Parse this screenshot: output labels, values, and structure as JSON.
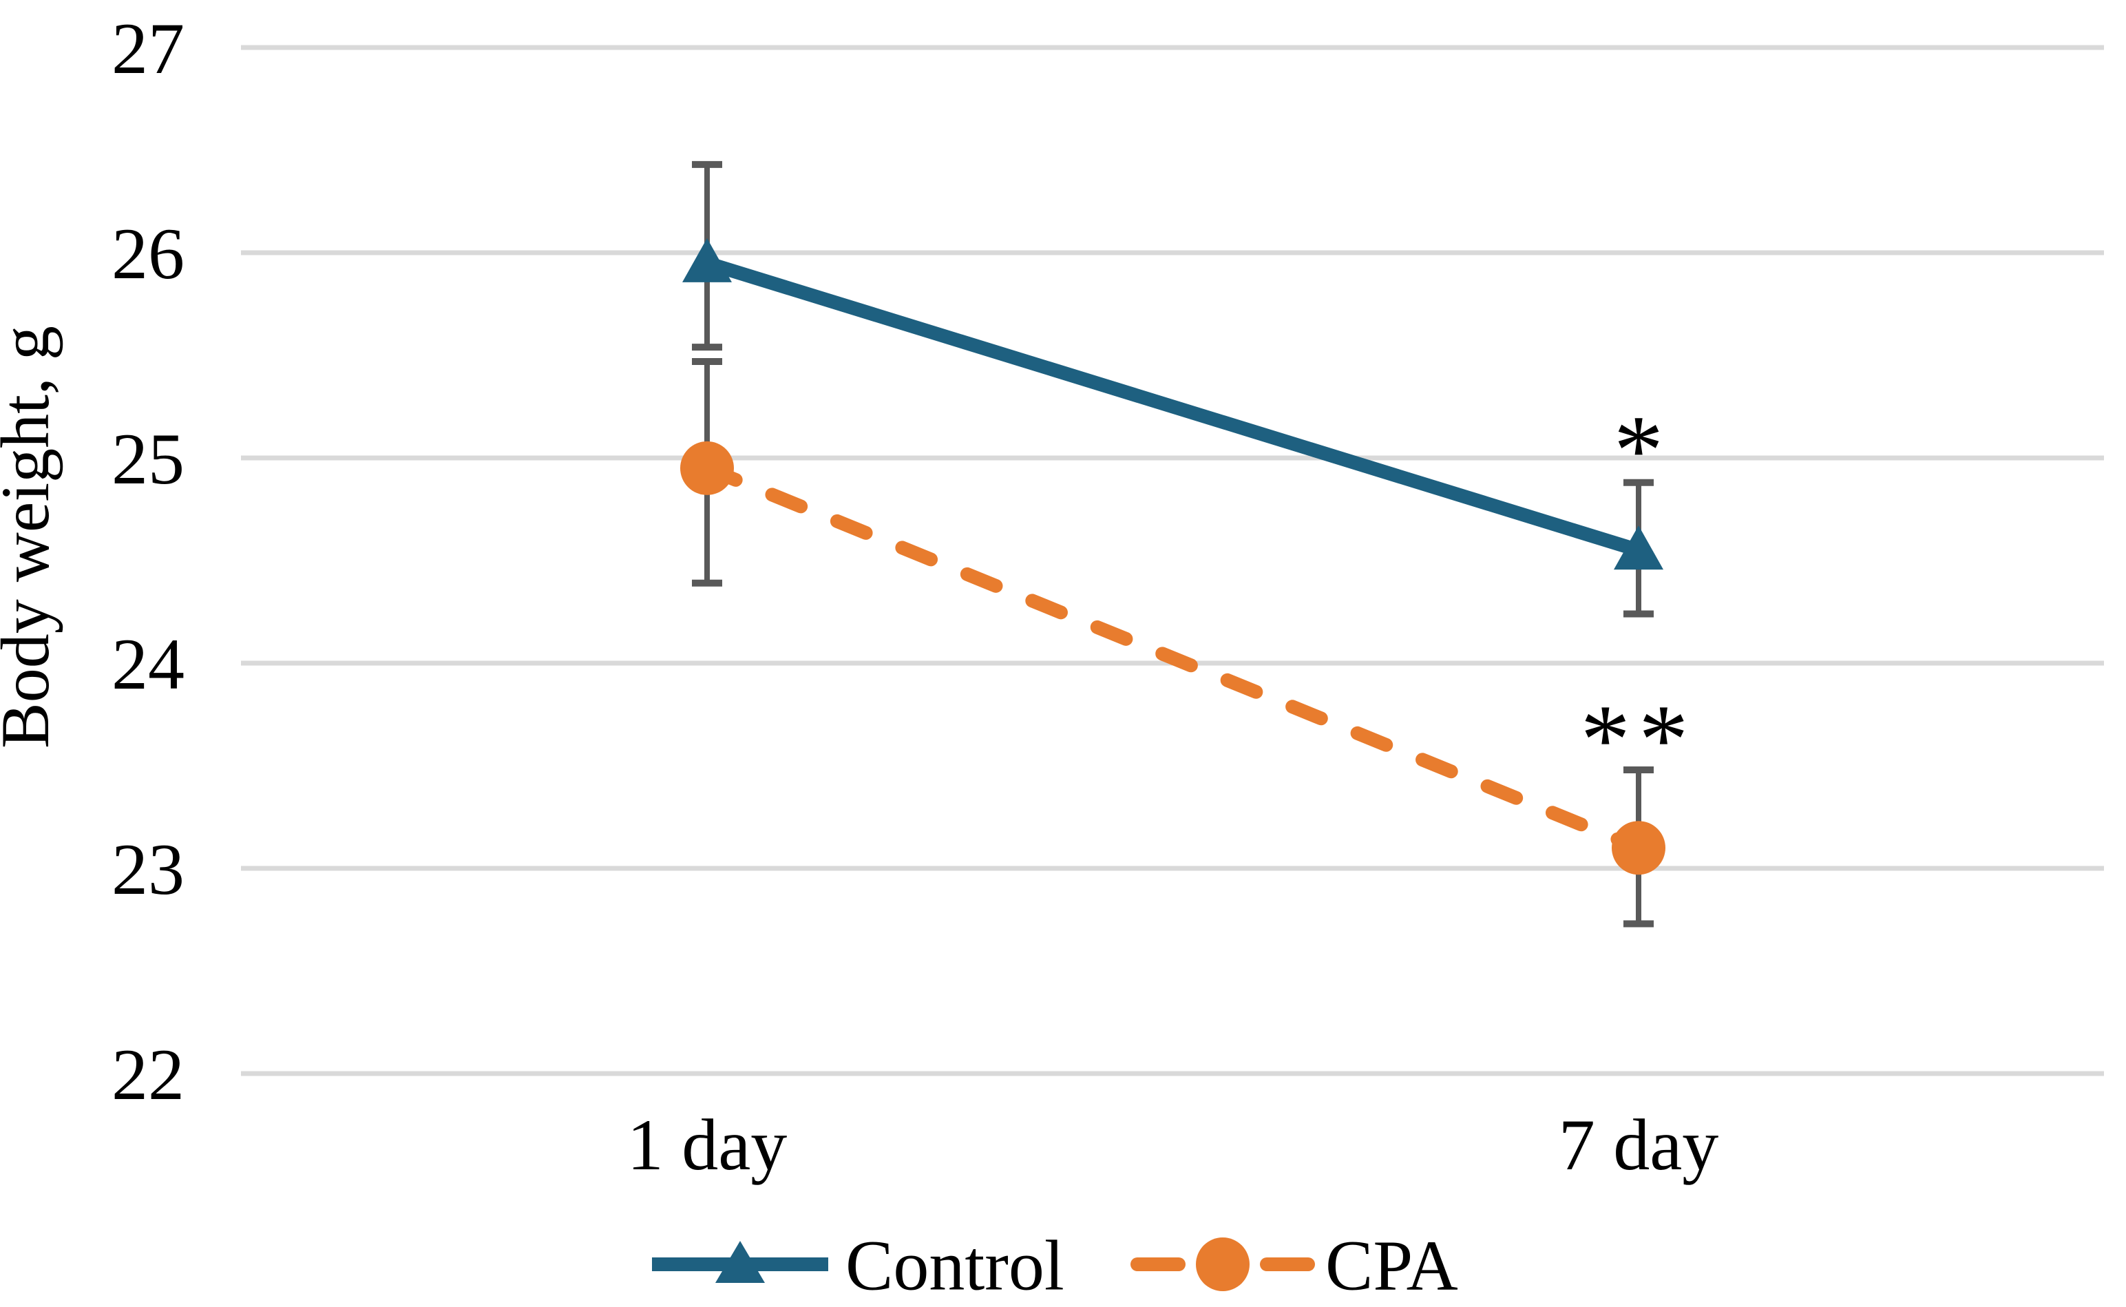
{
  "figure": {
    "background_color": "#ffffff",
    "text_color": "#000000"
  },
  "chart_data": {
    "type": "line",
    "title": "",
    "xlabel": "",
    "ylabel": "Body weight, g",
    "categories": [
      "1 day",
      "7 day"
    ],
    "y_ticks": [
      27,
      26,
      25,
      24,
      23,
      22
    ],
    "ylim": [
      21.3,
      27
    ],
    "grid": "horizontal-only",
    "gridline_color": "#d9d9d9",
    "error_bar_color": "#595959",
    "legend_position": "bottom-center",
    "series": [
      {
        "name": "Control",
        "color": "#1e6080",
        "line_style": "solid",
        "marker": "triangle",
        "values": [
          25.95,
          24.55
        ],
        "error_low": [
          25.54,
          24.24
        ],
        "error_high": [
          26.43,
          24.88
        ]
      },
      {
        "name": "CPA",
        "color": "#e87c2e",
        "line_style": "dashed",
        "marker": "circle",
        "values": [
          24.95,
          23.1
        ],
        "error_low": [
          24.39,
          22.73
        ],
        "error_high": [
          25.47,
          23.48
        ]
      }
    ],
    "annotations": [
      {
        "text": "*",
        "category": "7 day",
        "y": 25.1,
        "series": "Control"
      },
      {
        "text": "**",
        "category": "7 day",
        "y": 23.69,
        "series": "CPA"
      }
    ]
  }
}
